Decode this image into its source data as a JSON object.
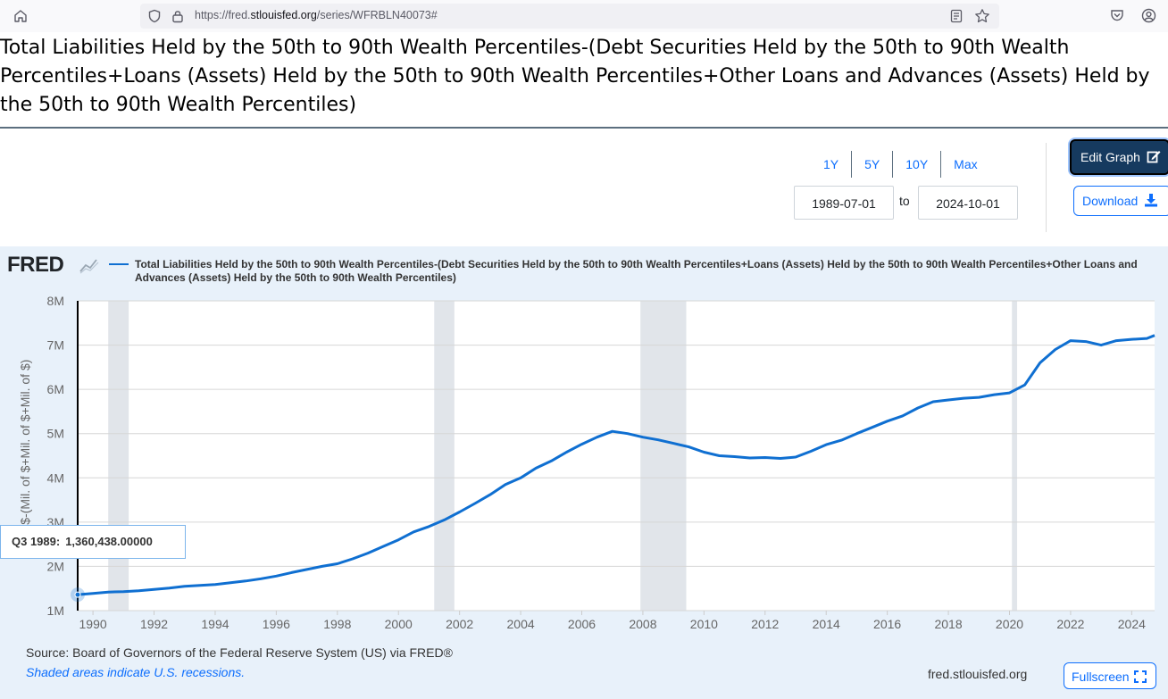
{
  "browser": {
    "url_prefix": "https://fred.",
    "url_host": "stlouisfed.org",
    "url_path": "/series/WFRBLN40073#",
    "home_icon": "home-icon",
    "shield_icon": "shield-icon",
    "lock_icon": "lock-icon",
    "reader_icon": "reader-view-icon",
    "bookmark_icon": "star-icon",
    "pocket_icon": "pocket-icon",
    "account_icon": "account-icon"
  },
  "page": {
    "title": "Total Liabilities Held by the 50th to 90th Wealth Percentiles-(Debt Securities Held by the 50th to 90th Wealth Percentiles+Loans (Assets) Held by the 50th to 90th Wealth Percentiles+Other Loans and Advances (Assets) Held by the 50th to 90th Wealth Percentiles)"
  },
  "controls": {
    "ranges": [
      "1Y",
      "5Y",
      "10Y",
      "Max"
    ],
    "start_date": "1989-07-01",
    "to_label": "to",
    "end_date": "2024-10-01",
    "edit_graph_label": "Edit Graph",
    "download_label": "Download",
    "accent_color": "#0d6efd",
    "edit_button_color": "#163a5f"
  },
  "graph": {
    "logo": "FRED",
    "legend": "Total Liabilities Held by the 50th to 90th Wealth Percentiles-(Debt Securities Held by the 50th to 90th Wealth Percentiles+Loans (Assets) Held by the 50th to 90th Wealth Percentiles+Other Loans and Advances (Assets) Held by the 50th to 90th Wealth Percentiles)",
    "tooltip_label": "Q3 1989:",
    "tooltip_value": "1,360,438.00000",
    "source": "Source: Board of Governors of the Federal Reserve System (US) via FRED®",
    "shaded_note": "Shaded areas indicate U.S. recessions.",
    "site": "fred.stlouisfed.org",
    "fullscreen_label": "Fullscreen"
  },
  "chart_data": {
    "type": "line",
    "title": "",
    "xlabel": "",
    "ylabel": "Mil. $-(Mil. of $+Mil. of $+Mil. of $)",
    "xlim": [
      1989.5,
      2024.75
    ],
    "ylim": [
      1000000,
      8000000
    ],
    "y_ticks": [
      1000000,
      2000000,
      3000000,
      4000000,
      5000000,
      6000000,
      7000000,
      8000000
    ],
    "y_tick_labels": [
      "1M",
      "2M",
      "3M",
      "4M",
      "5M",
      "6M",
      "7M",
      "8M"
    ],
    "x_ticks": [
      1990,
      1992,
      1994,
      1996,
      1998,
      2000,
      2002,
      2004,
      2006,
      2008,
      2010,
      2012,
      2014,
      2016,
      2018,
      2020,
      2022,
      2024
    ],
    "x_tick_labels": [
      "1990",
      "1992",
      "1994",
      "1996",
      "1998",
      "2000",
      "2002",
      "2004",
      "2006",
      "2008",
      "2010",
      "2012",
      "2014",
      "2016",
      "2018",
      "2020",
      "2022",
      "2024"
    ],
    "grid": true,
    "recessions": [
      [
        1990.5,
        1991.17
      ],
      [
        2001.17,
        2001.83
      ],
      [
        2007.92,
        2009.42
      ],
      [
        2020.08,
        2020.25
      ]
    ],
    "series": [
      {
        "color": "#0f6fd1",
        "x": [
          1989.5,
          1990.0,
          1990.5,
          1991.0,
          1991.5,
          1992.0,
          1992.5,
          1993.0,
          1993.5,
          1994.0,
          1994.5,
          1995.0,
          1995.5,
          1996.0,
          1996.5,
          1997.0,
          1997.5,
          1998.0,
          1998.5,
          1999.0,
          1999.5,
          2000.0,
          2000.5,
          2001.0,
          2001.5,
          2002.0,
          2002.5,
          2003.0,
          2003.5,
          2004.0,
          2004.5,
          2005.0,
          2005.5,
          2006.0,
          2006.5,
          2007.0,
          2007.5,
          2008.0,
          2008.5,
          2009.0,
          2009.5,
          2010.0,
          2010.5,
          2011.0,
          2011.5,
          2012.0,
          2012.5,
          2013.0,
          2013.5,
          2014.0,
          2014.5,
          2015.0,
          2015.5,
          2016.0,
          2016.5,
          2017.0,
          2017.5,
          2018.0,
          2018.5,
          2019.0,
          2019.5,
          2020.0,
          2020.5,
          2021.0,
          2021.5,
          2022.0,
          2022.5,
          2023.0,
          2023.5,
          2024.0,
          2024.5,
          2024.75
        ],
        "values": [
          1360438,
          1390000,
          1420000,
          1430000,
          1450000,
          1480000,
          1510000,
          1550000,
          1570000,
          1590000,
          1630000,
          1670000,
          1720000,
          1780000,
          1860000,
          1930000,
          2000000,
          2060000,
          2170000,
          2300000,
          2450000,
          2600000,
          2780000,
          2900000,
          3050000,
          3230000,
          3420000,
          3620000,
          3850000,
          4000000,
          4220000,
          4380000,
          4580000,
          4760000,
          4920000,
          5050000,
          5000000,
          4920000,
          4860000,
          4780000,
          4700000,
          4580000,
          4500000,
          4480000,
          4450000,
          4460000,
          4440000,
          4470000,
          4600000,
          4750000,
          4850000,
          5000000,
          5140000,
          5280000,
          5400000,
          5580000,
          5720000,
          5760000,
          5800000,
          5820000,
          5880000,
          5920000,
          6100000,
          6600000,
          6900000,
          7100000,
          7080000,
          7000000,
          7100000,
          7130000,
          7150000,
          7220000
        ]
      }
    ]
  }
}
